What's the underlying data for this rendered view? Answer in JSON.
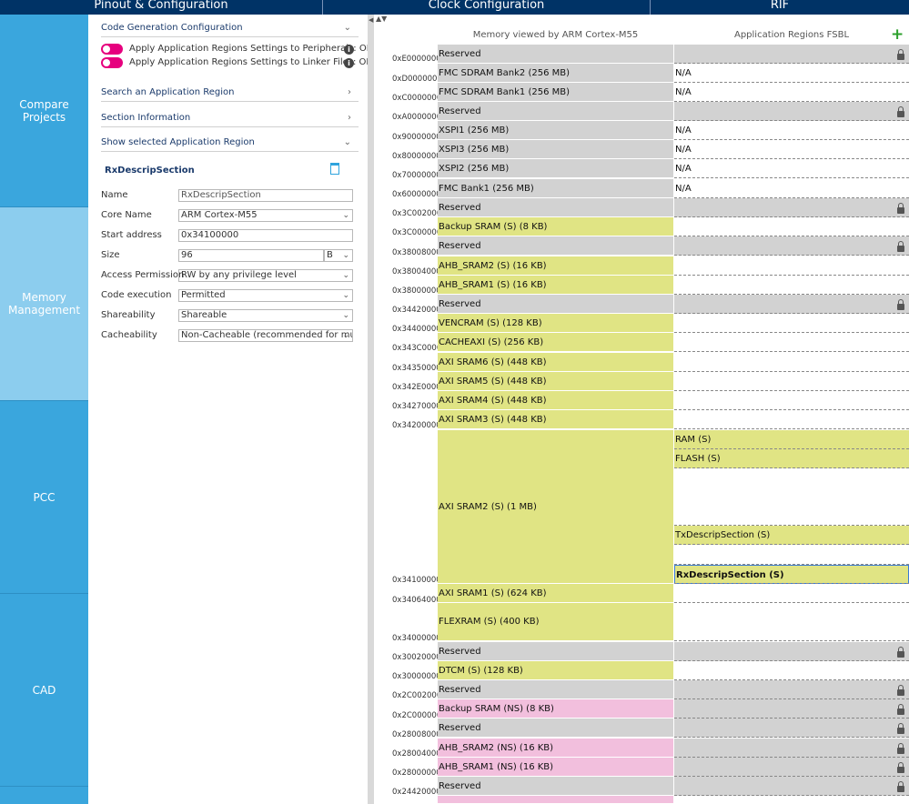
{
  "tabs": [
    "Pinout & Configuration",
    "Clock Configuration",
    "RIF"
  ],
  "sidenav": [
    "Compare Projects",
    "Memory\nManagement",
    "PCC",
    "CAD"
  ],
  "config": {
    "code_gen_title": "Code Generation Configuration",
    "toggle1": "Apply Application Regions Settings to Peripherals: OFF",
    "toggle2": "Apply Application Regions Settings to Linker Files: OFF",
    "search_region": "Search an Application Region",
    "section_info": "Section Information",
    "show_selected": "Show selected Application Region",
    "region_name": "RxDescripSection",
    "fields": {
      "name_label": "Name",
      "name_value": "RxDescripSection",
      "core_label": "Core Name",
      "core_value": "ARM Cortex-M55",
      "start_label": "Start address",
      "start_value": "0x34100000",
      "size_label": "Size",
      "size_value": "96",
      "size_unit": "B",
      "access_label": "Access Permission",
      "access_value": "RW by any privilege level",
      "exec_label": "Code execution",
      "exec_value": "Permitted",
      "share_label": "Shareability",
      "share_value": "Shareable",
      "cache_label": "Cacheability",
      "cache_value": "Non-Cacheable (recommended for multi..."
    }
  },
  "memory": {
    "col_left": "Memory viewed by ARM Cortex-M55",
    "col_right": "Application Regions FSBL",
    "addresses": [
      "0xE0000000",
      "0xD0000000",
      "0xC0000000",
      "0xA0000000",
      "0x90000000",
      "0x80000000",
      "0x70000000",
      "0x60000000",
      "0x3C002000",
      "0x3C000000",
      "0x38008000",
      "0x38004000",
      "0x38000000",
      "0x34420000",
      "0x34400000",
      "0x343C0000",
      "0x34350000",
      "0x342E0000",
      "0x34270000",
      "0x34200000",
      "0x34100000",
      "0x34064000",
      "0x34000000",
      "0x30020000",
      "0x30000000",
      "0x2C002000",
      "0x2C000000",
      "0x28008000",
      "0x28004000",
      "0x28000000",
      "0x24420000"
    ],
    "blocks": [
      {
        "label": "Reserved",
        "c": "gray"
      },
      {
        "label": "FMC SDRAM Bank2 (256 MB)",
        "c": "gray"
      },
      {
        "label": "FMC SDRAM Bank1 (256 MB)",
        "c": "gray"
      },
      {
        "label": "Reserved",
        "c": "gray"
      },
      {
        "label": "XSPI1 (256 MB)",
        "c": "gray"
      },
      {
        "label": "XSPI3 (256 MB)",
        "c": "gray"
      },
      {
        "label": "XSPI2 (256 MB)",
        "c": "gray"
      },
      {
        "label": "FMC Bank1 (256 MB)",
        "c": "gray"
      },
      {
        "label": "Reserved",
        "c": "gray"
      },
      {
        "label": "Backup SRAM (S) (8 KB)",
        "c": "green"
      },
      {
        "label": "Reserved",
        "c": "gray"
      },
      {
        "label": "AHB_SRAM2 (S) (16 KB)",
        "c": "green"
      },
      {
        "label": "AHB_SRAM1 (S) (16 KB)",
        "c": "green"
      },
      {
        "label": "Reserved",
        "c": "gray"
      },
      {
        "label": "VENCRAM (S) (128 KB)",
        "c": "green"
      },
      {
        "label": "CACHEAXI (S) (256 KB)",
        "c": "green"
      },
      {
        "label": "AXI SRAM6 (S) (448 KB)",
        "c": "green"
      },
      {
        "label": "AXI SRAM5 (S) (448 KB)",
        "c": "green"
      },
      {
        "label": "AXI SRAM4 (S) (448 KB)",
        "c": "green"
      },
      {
        "label": "AXI SRAM3 (S) (448 KB)",
        "c": "green"
      },
      {
        "label": "AXI SRAM2 (S) (1 MB)",
        "c": "green"
      },
      {
        "label": "AXI SRAM1 (S) (624 KB)",
        "c": "green"
      },
      {
        "label": "FLEXRAM (S) (400 KB)",
        "c": "green"
      },
      {
        "label": "Reserved",
        "c": "gray"
      },
      {
        "label": "DTCM (S) (128 KB)",
        "c": "green"
      },
      {
        "label": "Reserved",
        "c": "gray"
      },
      {
        "label": "Backup SRAM (NS) (8 KB)",
        "c": "pink"
      },
      {
        "label": "Reserved",
        "c": "gray"
      },
      {
        "label": "AHB_SRAM2 (NS) (16 KB)",
        "c": "pink"
      },
      {
        "label": "AHB_SRAM1 (NS) (16 KB)",
        "c": "pink"
      },
      {
        "label": "Reserved",
        "c": "gray"
      },
      {
        "label": "",
        "c": "pink"
      }
    ],
    "right": [
      {
        "label": "",
        "c": "gray",
        "lock": true
      },
      {
        "label": "N/A",
        "c": "none"
      },
      {
        "label": "N/A",
        "c": "none"
      },
      {
        "label": "",
        "c": "gray",
        "lock": true
      },
      {
        "label": "N/A",
        "c": "none"
      },
      {
        "label": "N/A",
        "c": "none"
      },
      {
        "label": "N/A",
        "c": "none"
      },
      {
        "label": "N/A",
        "c": "none"
      },
      {
        "label": "",
        "c": "gray",
        "lock": true
      },
      {
        "label": "",
        "c": "none"
      },
      {
        "label": "",
        "c": "gray",
        "lock": true
      },
      {
        "label": "",
        "c": "none"
      },
      {
        "label": "",
        "c": "none"
      },
      {
        "label": "",
        "c": "gray",
        "lock": true
      },
      {
        "label": "",
        "c": "none"
      },
      {
        "label": "",
        "c": "none"
      },
      {
        "label": "",
        "c": "none"
      },
      {
        "label": "",
        "c": "none"
      },
      {
        "label": "",
        "c": "none"
      },
      {
        "label": "",
        "c": "none"
      },
      {
        "label": "RAM (S)",
        "c": "green"
      },
      {
        "label": "FLASH (S)",
        "c": "green"
      },
      {
        "label": "",
        "c": "none"
      },
      {
        "label": "TxDescripSection (S)",
        "c": "green"
      },
      {
        "label": "",
        "c": "none"
      },
      {
        "label": "RxDescripSection (S)",
        "c": "sel"
      },
      {
        "label": "",
        "c": "none"
      },
      {
        "label": "",
        "c": "none"
      },
      {
        "label": "",
        "c": "gray",
        "lock": true
      },
      {
        "label": "",
        "c": "none"
      },
      {
        "label": "",
        "c": "gray",
        "lock": true
      },
      {
        "label": "",
        "c": "gray",
        "lock": true
      },
      {
        "label": "",
        "c": "gray",
        "lock": true
      },
      {
        "label": "",
        "c": "gray",
        "lock": true
      },
      {
        "label": "",
        "c": "gray",
        "lock": true
      },
      {
        "label": "",
        "c": "gray",
        "lock": true
      }
    ],
    "colors": {
      "reserved": "#d2d2d2",
      "secure": "#e0e484",
      "nonsecure": "#f2bfdd"
    }
  }
}
